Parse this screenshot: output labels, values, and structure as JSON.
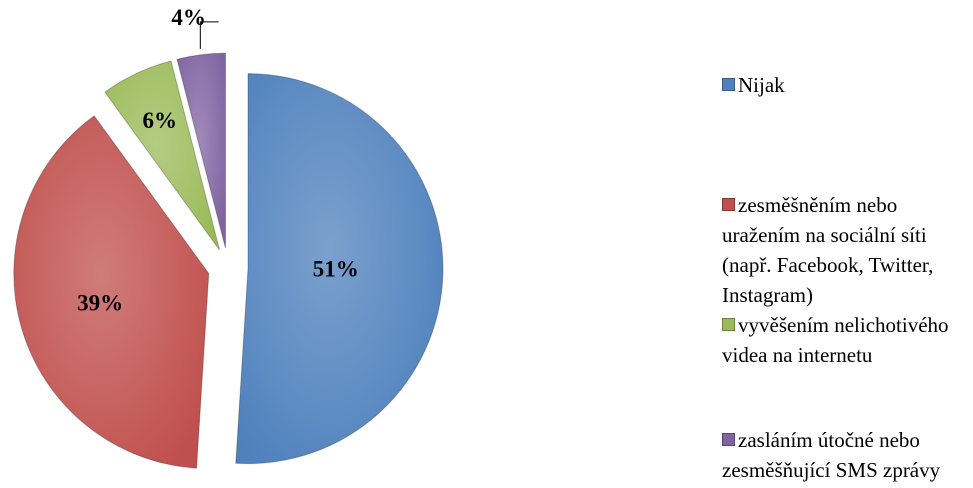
{
  "chart_data": {
    "type": "pie",
    "categories": [
      "Nijak",
      "zesměšněním nebo uražením na sociální síti (např. Facebook, Twitter, Instagram)",
      "vyvěšením nelichotivého videa na internetu",
      "zasláním útočné nebo zesměšňující SMS zprávy"
    ],
    "values": [
      51,
      39,
      6,
      4
    ],
    "value_labels": [
      "51%",
      "39%",
      "6%",
      "4%"
    ],
    "colors": [
      "#4f81bd",
      "#c0504d",
      "#9bbb59",
      "#8064a2"
    ],
    "legend": "right"
  }
}
